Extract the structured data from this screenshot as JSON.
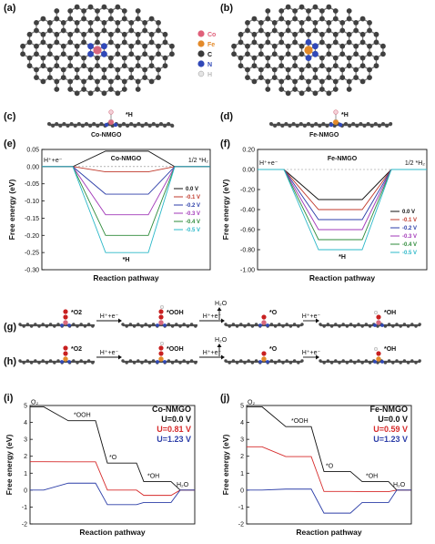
{
  "panels": {
    "a": "(a)",
    "b": "(b)",
    "c": "(c)",
    "d": "(d)",
    "e": "(e)",
    "f": "(f)",
    "g": "(g)",
    "h": "(h)",
    "i": "(i)",
    "j": "(j)"
  },
  "atom_legend": [
    {
      "label": "Co",
      "color": "#e0607a"
    },
    {
      "label": "Fe",
      "color": "#e38a2a"
    },
    {
      "label": "C",
      "color": "#3a3a3a"
    },
    {
      "label": "N",
      "color": "#3048b8"
    },
    {
      "label": "H",
      "color": "#d8d8d8"
    }
  ],
  "structures": {
    "co_label": "Co-NMGO",
    "fe_label": "Fe-NMGO",
    "h_adsorbate": "*H",
    "metal_colors": {
      "co": "#d9687e",
      "fe": "#e38a2a"
    }
  },
  "pathways": {
    "g_metal_color": "#d9687e",
    "h_metal_color": "#e38a2a",
    "species": [
      "*O2",
      "*OOH",
      "*O",
      "*OH"
    ],
    "steps": [
      "H⁺+e⁻",
      "H⁺+e⁻",
      "H⁺+e⁻"
    ],
    "water": "H₂O"
  },
  "chart_data": [
    {
      "id": "e",
      "type": "line",
      "title": "Co-NMGO",
      "xlabel": "Reaction pathway",
      "ylabel": "Free energy (eV)",
      "ylim": [
        -0.3,
        0.05
      ],
      "yticks": [
        "0.05",
        "0.00",
        "-0.05",
        "-0.10",
        "-0.15",
        "-0.20",
        "-0.25",
        "-0.30"
      ],
      "ytick_values": [
        0.05,
        0.0,
        -0.05,
        -0.1,
        -0.15,
        -0.2,
        -0.25,
        -0.3
      ],
      "left_label": "H⁺+e⁻",
      "right_label": "1/2 *H₂",
      "state_label": "*H",
      "legend_placement": "center-right",
      "series": [
        {
          "name": "0.0 V",
          "color": "#111111",
          "values": [
            0.0,
            0.045,
            0.0
          ]
        },
        {
          "name": "-0.1 V",
          "color": "#c0392b",
          "values": [
            0.0,
            -0.015,
            0.0
          ]
        },
        {
          "name": "-0.2 V",
          "color": "#2c3ea8",
          "values": [
            0.0,
            -0.08,
            0.0
          ]
        },
        {
          "name": "-0.3 V",
          "color": "#a238b8",
          "values": [
            0.0,
            -0.14,
            0.0
          ]
        },
        {
          "name": "-0.4 V",
          "color": "#2e8b3a",
          "values": [
            0.0,
            -0.2,
            0.0
          ]
        },
        {
          "name": "-0.5 V",
          "color": "#2bb8c8",
          "values": [
            0.0,
            -0.25,
            0.0
          ]
        }
      ]
    },
    {
      "id": "f",
      "type": "line",
      "title": "Fe-NMGO",
      "xlabel": "Reaction pathway",
      "ylabel": "Free energy (eV)",
      "ylim": [
        -1.0,
        0.2
      ],
      "yticks": [
        "0.20",
        "0.00",
        "-0.20",
        "-0.40",
        "-0.60",
        "-0.80",
        "-1.00"
      ],
      "ytick_values": [
        0.2,
        0.0,
        -0.2,
        -0.4,
        -0.6,
        -0.8,
        -1.0
      ],
      "left_label": "H⁺+e⁻",
      "right_label": "1/2 *H₂",
      "state_label": "*H",
      "legend_placement": "center-right",
      "series": [
        {
          "name": "0.0 V",
          "color": "#111111",
          "values": [
            0.0,
            -0.3,
            0.0
          ]
        },
        {
          "name": "-0.1 V",
          "color": "#c0392b",
          "values": [
            0.0,
            -0.4,
            0.0
          ]
        },
        {
          "name": "-0.2 V",
          "color": "#2c3ea8",
          "values": [
            0.0,
            -0.5,
            0.0
          ]
        },
        {
          "name": "-0.3 V",
          "color": "#a238b8",
          "values": [
            0.0,
            -0.6,
            0.0
          ]
        },
        {
          "name": "-0.4 V",
          "color": "#2e8b3a",
          "values": [
            0.0,
            -0.7,
            0.0
          ]
        },
        {
          "name": "-0.5 V",
          "color": "#2bb8c8",
          "values": [
            0.0,
            -0.8,
            0.0
          ]
        }
      ]
    },
    {
      "id": "i",
      "type": "line",
      "title": "Co-NMGO",
      "xlabel": "Reaction pathway",
      "ylabel": "Free energy (eV)",
      "ylim": [
        -2,
        5
      ],
      "yticks": [
        "5",
        "4",
        "3",
        "2",
        "1",
        "0",
        "-1",
        "-2"
      ],
      "ytick_values": [
        5,
        4,
        3,
        2,
        1,
        0,
        -1,
        -2
      ],
      "states": [
        "O₂",
        "*OOH",
        "*O",
        "*OH",
        "H₂O"
      ],
      "legend_placement": "top-right",
      "series": [
        {
          "name": "U=0.0 V",
          "color": "#111111",
          "values": [
            4.92,
            4.1,
            1.6,
            0.5,
            0.0
          ]
        },
        {
          "name": "U=0.81 V",
          "color": "#d62a2a",
          "values": [
            1.68,
            1.67,
            0.0,
            -0.31,
            0.0
          ]
        },
        {
          "name": "U=1.23 V",
          "color": "#2c3ea8",
          "values": [
            0.0,
            0.41,
            -0.86,
            -0.73,
            0.0
          ]
        }
      ]
    },
    {
      "id": "j",
      "type": "line",
      "title": "Fe-NMGO",
      "xlabel": "Reaction pathway",
      "ylabel": "Free energy (eV)",
      "ylim": [
        -2,
        5
      ],
      "yticks": [
        "5",
        "4",
        "3",
        "2",
        "1",
        "0",
        "-1",
        "-2"
      ],
      "ytick_values": [
        5,
        4,
        3,
        2,
        1,
        0,
        -1,
        -2
      ],
      "states": [
        "O₂",
        "*OOH",
        "*O",
        "*OH",
        "H₂O"
      ],
      "legend_placement": "top-right",
      "series": [
        {
          "name": "U=0.0 V",
          "color": "#111111",
          "values": [
            4.92,
            3.75,
            1.1,
            0.5,
            0.0
          ]
        },
        {
          "name": "U=0.59 V",
          "color": "#d62a2a",
          "values": [
            2.56,
            1.98,
            -0.08,
            -0.09,
            0.0
          ]
        },
        {
          "name": "U=1.23 V",
          "color": "#2c3ea8",
          "values": [
            0.0,
            0.06,
            -1.36,
            -0.73,
            0.0
          ]
        }
      ]
    }
  ]
}
